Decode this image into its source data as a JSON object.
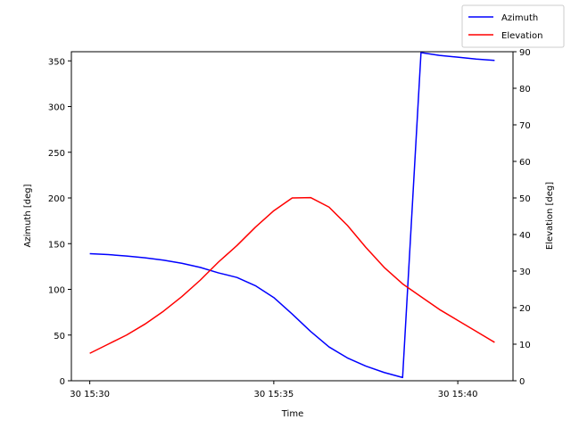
{
  "chart_data": {
    "type": "line",
    "xlabel": "Time",
    "ylabel_left": "Azimuth [deg]",
    "ylabel_right": "Elevation [deg]",
    "x_ticks": [
      {
        "minute": 30,
        "label": "30 15:30"
      },
      {
        "minute": 35,
        "label": "30 15:35"
      },
      {
        "minute": 40,
        "label": "30 15:40"
      }
    ],
    "xlim": [
      "15:29.5",
      "15:41.5"
    ],
    "ylim_left": [
      0,
      360
    ],
    "ylim_right": [
      0,
      90
    ],
    "yticks_left": [
      0,
      50,
      100,
      150,
      200,
      250,
      300,
      350
    ],
    "yticks_right": [
      0,
      10,
      20,
      30,
      40,
      50,
      60,
      70,
      80,
      90
    ],
    "grid": false,
    "legend_position": "top-right, outside axes",
    "series": [
      {
        "name": "Azimuth",
        "color": "#0000ff",
        "axis": "left",
        "points": [
          [
            "15:30.0",
            139
          ],
          [
            "15:30.5",
            138
          ],
          [
            "15:31.0",
            136.5
          ],
          [
            "15:31.5",
            134.5
          ],
          [
            "15:32.0",
            132
          ],
          [
            "15:32.5",
            128.5
          ],
          [
            "15:33.0",
            124
          ],
          [
            "15:33.5",
            118
          ],
          [
            "15:34.0",
            113
          ],
          [
            "15:34.5",
            104
          ],
          [
            "15:35.0",
            91
          ],
          [
            "15:35.5",
            73
          ],
          [
            "15:36.0",
            54
          ],
          [
            "15:36.5",
            37
          ],
          [
            "15:37.0",
            25
          ],
          [
            "15:37.5",
            16
          ],
          [
            "15:38.0",
            9
          ],
          [
            "15:38.5",
            3.5
          ],
          [
            "15:39.0",
            359
          ],
          [
            "15:39.5",
            356
          ],
          [
            "15:40.0",
            354
          ],
          [
            "15:40.5",
            352
          ],
          [
            "15:41.0",
            350.5
          ]
        ]
      },
      {
        "name": "Elevation",
        "color": "#ff0000",
        "axis": "right",
        "points": [
          [
            "15:30.0",
            7.5
          ],
          [
            "15:30.5",
            10
          ],
          [
            "15:31.0",
            12.5
          ],
          [
            "15:31.5",
            15.5
          ],
          [
            "15:32.0",
            19
          ],
          [
            "15:32.5",
            23
          ],
          [
            "15:33.0",
            27.5
          ],
          [
            "15:33.5",
            32.5
          ],
          [
            "15:34.0",
            37
          ],
          [
            "15:34.5",
            42
          ],
          [
            "15:35.0",
            46.5
          ],
          [
            "15:35.5",
            50
          ],
          [
            "15:36.0",
            50.1
          ],
          [
            "15:36.5",
            47.5
          ],
          [
            "15:37.0",
            42.5
          ],
          [
            "15:37.5",
            36.5
          ],
          [
            "15:38.0",
            31
          ],
          [
            "15:38.5",
            26.5
          ],
          [
            "15:39.0",
            23
          ],
          [
            "15:39.5",
            19.5
          ],
          [
            "15:40.0",
            16.5
          ],
          [
            "15:40.5",
            13.5
          ],
          [
            "15:41.0",
            10.5
          ]
        ]
      }
    ]
  }
}
